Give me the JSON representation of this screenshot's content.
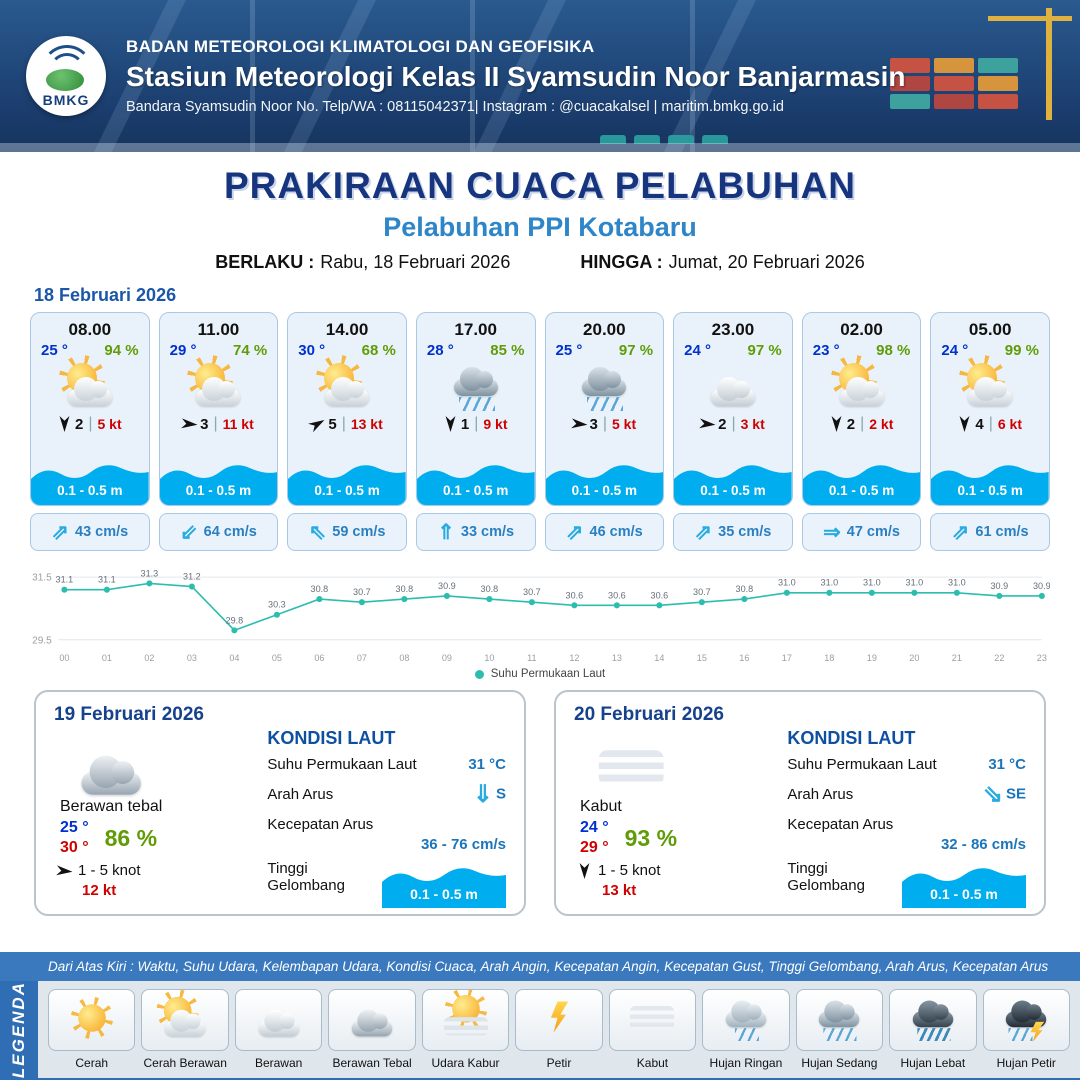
{
  "header": {
    "logo_text": "BMKG",
    "org": "BADAN METEOROLOGI KLIMATOLOGI DAN GEOFISIKA",
    "station": "Stasiun Meteorologi Kelas II Syamsudin Noor Banjarmasin",
    "contact": "Bandara Syamsudin Noor No. Telp/WA : 08115042371| Instagram : @cuacakalsel | maritim.bmkg.go.id"
  },
  "title": {
    "main": "PRAKIRAAN CUACA PELABUHAN",
    "sub": "Pelabuhan PPI Kotabaru",
    "berlaku_label": "BERLAKU :",
    "berlaku_value": "Rabu, 18 Februari 2026",
    "hingga_label": "HINGGA :",
    "hingga_value": "Jumat, 20 Februari 2026"
  },
  "forecast_date": "18 Februari 2026",
  "cards": [
    {
      "time": "08.00",
      "temp": "25 °",
      "humidity": "94 %",
      "icon": "cerah-berawan",
      "wind_num": "2",
      "wind_kt": "5 kt",
      "wind_deg": 180,
      "wave": "0.1 - 0.5 m",
      "current_arrow": "⇗",
      "current": "43 cm/s"
    },
    {
      "time": "11.00",
      "temp": "29 °",
      "humidity": "74 %",
      "icon": "cerah-berawan",
      "wind_num": "3",
      "wind_kt": "11 kt",
      "wind_deg": 95,
      "wave": "0.1 - 0.5 m",
      "current_arrow": "⇙",
      "current": "64 cm/s"
    },
    {
      "time": "14.00",
      "temp": "30 °",
      "humidity": "68 %",
      "icon": "cerah-berawan",
      "wind_num": "5",
      "wind_kt": "13 kt",
      "wind_deg": 60,
      "wave": "0.1 - 0.5 m",
      "current_arrow": "⇖",
      "current": "59 cm/s"
    },
    {
      "time": "17.00",
      "temp": "28 °",
      "humidity": "85 %",
      "icon": "hujan-sedang",
      "wind_num": "1",
      "wind_kt": "9 kt",
      "wind_deg": 180,
      "wave": "0.1 - 0.5 m",
      "current_arrow": "⇑",
      "current": "33 cm/s"
    },
    {
      "time": "20.00",
      "temp": "25 °",
      "humidity": "97 %",
      "icon": "hujan-sedang",
      "wind_num": "3",
      "wind_kt": "5 kt",
      "wind_deg": 95,
      "wave": "0.1 - 0.5 m",
      "current_arrow": "⇗",
      "current": "46 cm/s"
    },
    {
      "time": "23.00",
      "temp": "24 °",
      "humidity": "97 %",
      "icon": "berawan",
      "wind_num": "2",
      "wind_kt": "3 kt",
      "wind_deg": 95,
      "wave": "0.1 - 0.5 m",
      "current_arrow": "⇗",
      "current": "35 cm/s"
    },
    {
      "time": "02.00",
      "temp": "23 °",
      "humidity": "98 %",
      "icon": "cerah-berawan",
      "wind_num": "2",
      "wind_kt": "2 kt",
      "wind_deg": 180,
      "wave": "0.1 - 0.5 m",
      "current_arrow": "⇒",
      "current": "47 cm/s"
    },
    {
      "time": "05.00",
      "temp": "24 °",
      "humidity": "99 %",
      "icon": "cerah-berawan",
      "wind_num": "4",
      "wind_kt": "6 kt",
      "wind_deg": 180,
      "wave": "0.1 - 0.5 m",
      "current_arrow": "⇗",
      "current": "61 cm/s"
    }
  ],
  "chart_data": {
    "type": "line",
    "x": [
      "00",
      "01",
      "02",
      "03",
      "04",
      "05",
      "06",
      "07",
      "08",
      "09",
      "10",
      "11",
      "12",
      "13",
      "14",
      "15",
      "16",
      "17",
      "18",
      "19",
      "20",
      "21",
      "22",
      "23"
    ],
    "series": [
      {
        "name": "Suhu Permukaan Laut",
        "values": [
          31.1,
          31.1,
          31.3,
          31.2,
          29.8,
          30.3,
          30.8,
          30.7,
          30.8,
          30.9,
          30.8,
          30.7,
          30.6,
          30.6,
          30.6,
          30.7,
          30.8,
          31.0,
          31.0,
          31.0,
          31.0,
          31.0,
          30.9,
          30.9
        ]
      }
    ],
    "ylim": [
      29.5,
      31.5
    ],
    "yticks": [
      31.5,
      29.5
    ],
    "line_color": "#2dbdaf",
    "legend_position": "bottom"
  },
  "daily": [
    {
      "date": "19 Februari 2026",
      "condition": "Berawan tebal",
      "icon": "berawan-tebal",
      "temp_min": "25 °",
      "temp_max": "30 °",
      "humidity": "86 %",
      "wind_label": "1 - 5 knot",
      "wind_gust": "12 kt",
      "wind_deg": 95,
      "sea": {
        "title": "KONDISI LAUT",
        "sst_label": "Suhu Permukaan Laut",
        "sst_value": "31 °C",
        "current_dir_label": "Arah Arus",
        "current_dir_arrow": "⇓",
        "current_dir": "S",
        "current_speed_label": "Kecepatan Arus",
        "current_speed": "36 - 76 cm/s",
        "wave_label": "Tinggi Gelombang",
        "wave_value": "0.1 - 0.5 m"
      }
    },
    {
      "date": "20 Februari 2026",
      "condition": "Kabut",
      "icon": "kabut",
      "temp_min": "24 °",
      "temp_max": "29 °",
      "humidity": "93 %",
      "wind_label": "1 - 5 knot",
      "wind_gust": "13 kt",
      "wind_deg": 180,
      "sea": {
        "title": "KONDISI LAUT",
        "sst_label": "Suhu Permukaan Laut",
        "sst_value": "31 °C",
        "current_dir_label": "Arah Arus",
        "current_dir_arrow": "⇘",
        "current_dir": "SE",
        "current_speed_label": "Kecepatan Arus",
        "current_speed": "32 - 86 cm/s",
        "wave_label": "Tinggi Gelombang",
        "wave_value": "0.1 - 0.5 m"
      }
    }
  ],
  "legend": {
    "note": "Dari Atas Kiri : Waktu, Suhu Udara, Kelembapan Udara, Kondisi Cuaca, Arah Angin, Kecepatan Angin, Kecepatan Gust, Tinggi Gelombang, Arah Arus, Kecepatan Arus",
    "title": "LEGENDA",
    "items": [
      {
        "label": "Cerah",
        "icon": "cerah"
      },
      {
        "label": "Cerah Berawan",
        "icon": "cerah-berawan"
      },
      {
        "label": "Berawan",
        "icon": "berawan"
      },
      {
        "label": "Berawan Tebal",
        "icon": "berawan-tebal"
      },
      {
        "label": "Udara Kabur",
        "icon": "udara-kabur"
      },
      {
        "label": "Petir",
        "icon": "petir"
      },
      {
        "label": "Kabut",
        "icon": "kabut"
      },
      {
        "label": "Hujan Ringan",
        "icon": "hujan-ringan"
      },
      {
        "label": "Hujan Sedang",
        "icon": "hujan-sedang"
      },
      {
        "label": "Hujan Lebat",
        "icon": "hujan-lebat"
      },
      {
        "label": "Hujan Petir",
        "icon": "hujan-petir"
      }
    ]
  },
  "colors": {
    "header_bg": "#1b3e6f",
    "title_blue": "#16357e",
    "sub_blue": "#2e86c8",
    "temp_blue": "#0031cf",
    "humidity_green": "#5f9c07",
    "gust_red": "#cf0000",
    "wave_blue": "#00aeef",
    "chart_line": "#2dbdaf",
    "legend_bar": "#2f6eb4"
  }
}
